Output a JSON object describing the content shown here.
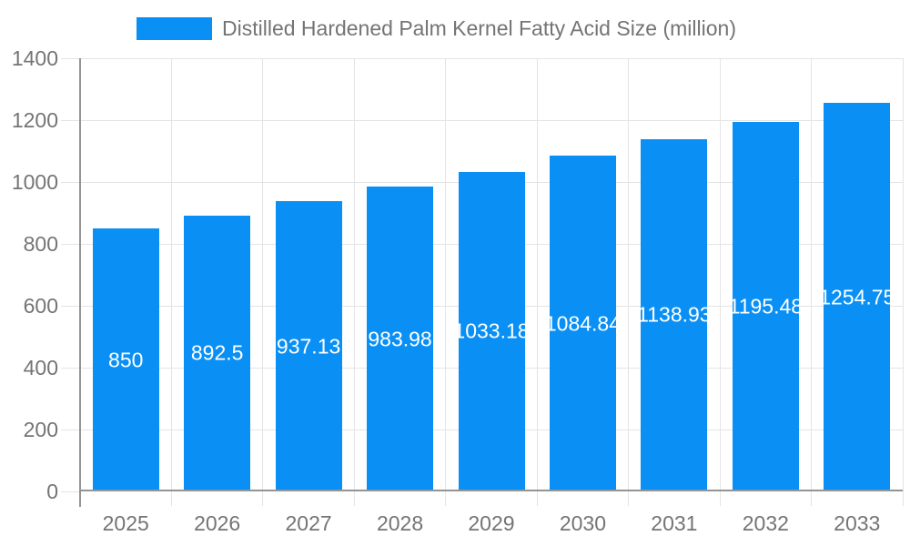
{
  "chart_data": {
    "type": "bar",
    "title": "Distilled Hardened Palm Kernel Fatty Acid Size (million)",
    "categories": [
      "2025",
      "2026",
      "2027",
      "2028",
      "2029",
      "2030",
      "2031",
      "2032",
      "2033"
    ],
    "series": [
      {
        "name": "Distilled Hardened Palm Kernel Fatty Acid Size (million)",
        "values": [
          850,
          892.5,
          937.13,
          983.98,
          1033.18,
          1084.84,
          1138.93,
          1195.48,
          1254.75
        ]
      }
    ],
    "bar_labels": [
      "850",
      "892.5",
      "937.13",
      "983.98",
      "1033.18",
      "1084.84",
      "1138.93",
      "1195.48",
      "1254.75"
    ],
    "xlabel": "",
    "ylabel": "",
    "ylim": [
      0,
      1400
    ],
    "yticks": [
      "0",
      "200",
      "400",
      "600",
      "800",
      "1000",
      "1200",
      "1400"
    ],
    "grid": true,
    "legend_position": "top",
    "colors": {
      "bar": "#0a90f5",
      "grid": "#e4e4e4",
      "axis": "#949494",
      "text": "#747474",
      "bar_label": "#ffffff",
      "background": "#ffffff"
    }
  }
}
